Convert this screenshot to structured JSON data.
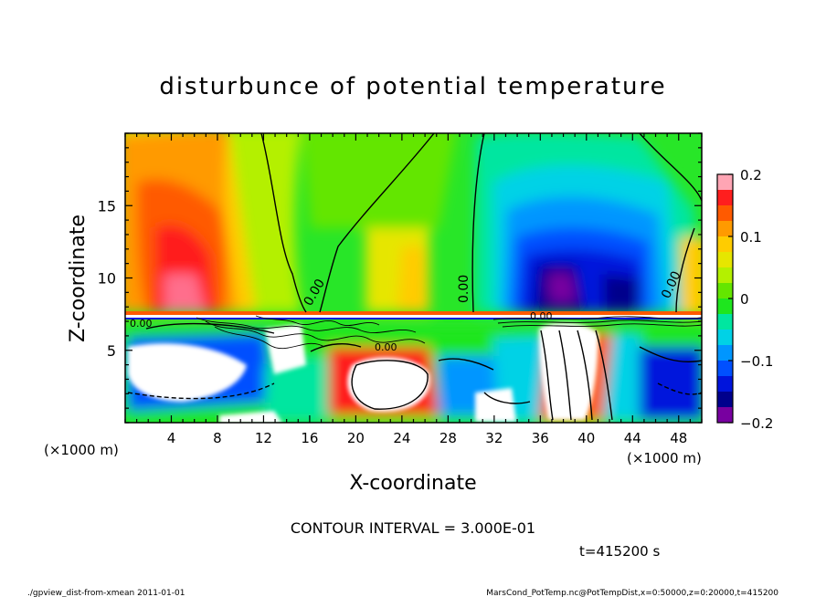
{
  "chart_data": {
    "type": "heatmap",
    "title": "disturbunce of potential temperature",
    "xlabel": "X-coordinate",
    "ylabel": "Z-coordinate",
    "x_unit": "(×1000 m)",
    "x_unit_right": "(×1000 m)",
    "y_unit": "(×1000 m)",
    "xlim": [
      0,
      50
    ],
    "ylim": [
      0,
      20
    ],
    "x_ticks": [
      4,
      8,
      12,
      16,
      20,
      24,
      28,
      32,
      36,
      40,
      44,
      48
    ],
    "y_ticks": [
      5,
      10,
      15
    ],
    "colorbar": {
      "range": [
        -0.2,
        0.2
      ],
      "tick_values": [
        0.2,
        0.1,
        0,
        -0.1,
        -0.2
      ],
      "tick_labels": [
        "0.2",
        "0.1",
        "0",
        "−0.1",
        "−0.2"
      ],
      "colors": [
        "#ffa5b4",
        "#ff1e1e",
        "#ff5a00",
        "#ff9a00",
        "#ffcc00",
        "#e6e600",
        "#b4f000",
        "#64e600",
        "#1ee61e",
        "#00e6a0",
        "#00d2e6",
        "#0096ff",
        "#0050ff",
        "#0014dc",
        "#00008c",
        "#7800a0"
      ]
    },
    "contour_interval": "CONTOUR INTERVAL = 3.000E-01",
    "contour_labels": [
      "0.00",
      "0.00",
      "0.00",
      "0.00",
      "0.00",
      "0.00"
    ],
    "time_label": "t=415200 s",
    "field_regions": [
      {
        "x": [
          0,
          12
        ],
        "z": [
          8,
          20
        ],
        "value": 0.12
      },
      {
        "x": [
          2,
          8
        ],
        "z": [
          8.5,
          14
        ],
        "value": 0.18
      },
      {
        "x": [
          12,
          18
        ],
        "z": [
          8,
          20
        ],
        "value": 0.05
      },
      {
        "x": [
          16,
          30
        ],
        "z": [
          8,
          20
        ],
        "value": 0.0
      },
      {
        "x": [
          30,
          46
        ],
        "z": [
          8,
          20
        ],
        "value": -0.1
      },
      {
        "x": [
          35,
          45
        ],
        "z": [
          8,
          13
        ],
        "value": -0.18
      },
      {
        "x": [
          46,
          50
        ],
        "z": [
          8,
          20
        ],
        "value": 0.05
      },
      {
        "x": [
          0,
          50
        ],
        "z": [
          0,
          7
        ],
        "value": 0.0
      }
    ]
  },
  "footer": {
    "left": "./gpview_dist-from-xmean  2011-01-01",
    "right": "MarsCond_PotTemp.nc@PotTempDist,x=0:50000,z=0:20000,t=415200"
  }
}
